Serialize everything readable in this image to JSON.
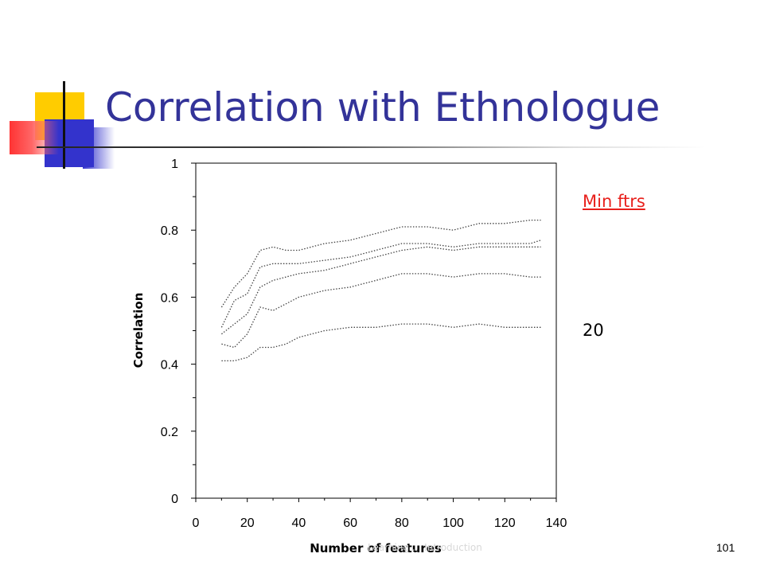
{
  "slide": {
    "title": "Correlation with Ethnologue",
    "side_link": "Min ftrs",
    "side_value": "20",
    "footer_faint": "Learning ... Introduction",
    "page_number": "101"
  },
  "colors": {
    "title": "#333399",
    "link": "#e8201c",
    "deco_yellow": "#ffcc00",
    "deco_blue": "#3333cc",
    "deco_red": "#ff3333"
  },
  "chart_data": {
    "type": "line",
    "title": "",
    "xlabel": "Number of features",
    "ylabel": "Correlation",
    "xlim": [
      0,
      140
    ],
    "ylim": [
      0,
      1
    ],
    "x_ticks": [
      "0",
      "20",
      "40",
      "60",
      "80",
      "100",
      "120",
      "140"
    ],
    "y_ticks": [
      "0",
      "0.2",
      "0.4",
      "0.6",
      "0.8",
      "1"
    ],
    "grid": false,
    "line_style": "dotted",
    "x": [
      10,
      15,
      20,
      25,
      30,
      35,
      40,
      50,
      60,
      70,
      80,
      90,
      100,
      110,
      120,
      130,
      134
    ],
    "series": [
      {
        "values": [
          0.57,
          0.63,
          0.67,
          0.74,
          0.75,
          0.74,
          0.74,
          0.76,
          0.77,
          0.79,
          0.81,
          0.81,
          0.8,
          0.82,
          0.82,
          0.83,
          0.83
        ]
      },
      {
        "values": [
          0.51,
          0.59,
          0.61,
          0.69,
          0.7,
          0.7,
          0.7,
          0.71,
          0.72,
          0.74,
          0.76,
          0.76,
          0.75,
          0.76,
          0.76,
          0.76,
          0.77
        ]
      },
      {
        "values": [
          0.49,
          0.52,
          0.55,
          0.63,
          0.65,
          0.66,
          0.67,
          0.68,
          0.7,
          0.72,
          0.74,
          0.75,
          0.74,
          0.75,
          0.75,
          0.75,
          0.75
        ]
      },
      {
        "values": [
          0.46,
          0.45,
          0.49,
          0.57,
          0.56,
          0.58,
          0.6,
          0.62,
          0.63,
          0.65,
          0.67,
          0.67,
          0.66,
          0.67,
          0.67,
          0.66,
          0.66
        ]
      },
      {
        "values": [
          0.41,
          0.41,
          0.42,
          0.45,
          0.45,
          0.46,
          0.48,
          0.5,
          0.51,
          0.51,
          0.52,
          0.52,
          0.51,
          0.52,
          0.51,
          0.51,
          0.51
        ]
      }
    ]
  }
}
